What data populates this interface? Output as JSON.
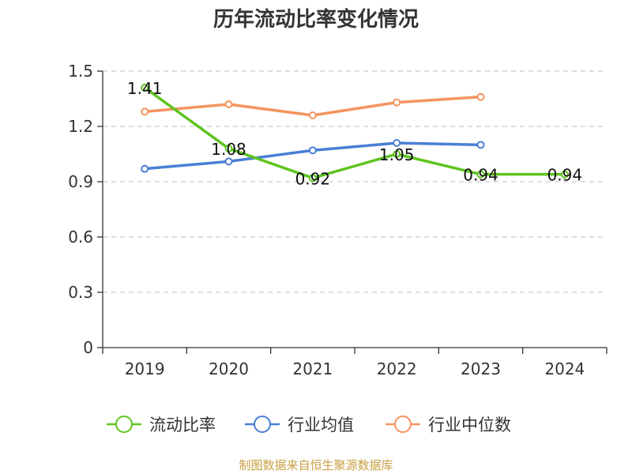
{
  "chart_data": {
    "type": "line",
    "title": "历年流动比率变化情况",
    "categories": [
      "2019",
      "2020",
      "2021",
      "2022",
      "2023",
      "2024"
    ],
    "yticks": [
      "0",
      "0.3",
      "0.6",
      "0.9",
      "1.2",
      "1.5"
    ],
    "ylim": [
      0,
      1.5
    ],
    "grid": true,
    "legend_position": "bottom",
    "series": [
      {
        "name": "流动比率",
        "color": "#5ec41f",
        "values": [
          1.41,
          1.08,
          0.92,
          1.05,
          0.94,
          0.94
        ],
        "labels": [
          "1.41",
          "1.08",
          "0.92",
          "1.05",
          "0.94",
          "0.94"
        ]
      },
      {
        "name": "行业均值",
        "color": "#4a7fd6",
        "values": [
          0.97,
          1.01,
          1.07,
          1.11,
          1.1,
          null
        ]
      },
      {
        "name": "行业中位数",
        "color": "#f59460",
        "values": [
          1.28,
          1.32,
          1.26,
          1.33,
          1.36,
          null
        ]
      }
    ]
  },
  "source": "制图数据来自恒生聚源数据库"
}
